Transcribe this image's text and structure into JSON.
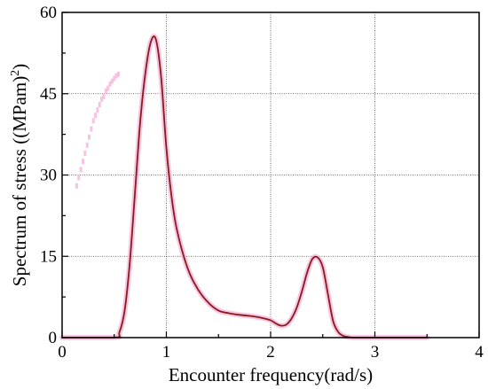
{
  "chart_data": {
    "type": "line",
    "xlabel": "Encounter frequency(rad/s)",
    "ylabel_main": "Spectrum of stress ((MPam)",
    "ylabel_sup": "2",
    "ylabel_close": ")",
    "xlim": [
      0,
      4
    ],
    "ylim": [
      0,
      60
    ],
    "x_ticks": [
      0,
      1,
      2,
      3,
      4
    ],
    "y_ticks": [
      0,
      15,
      30,
      45,
      60
    ],
    "x_tick_labels": [
      "0",
      "1",
      "2",
      "3",
      "4"
    ],
    "y_tick_labels": [
      "0",
      "15",
      "30",
      "45",
      "60"
    ],
    "grid": true,
    "line_color": "#8b1a1a",
    "glow_color": "#f4b8dc",
    "series": [
      {
        "x": [
          0.0,
          0.5,
          0.55,
          0.6,
          0.65,
          0.7,
          0.75,
          0.8,
          0.85,
          0.9,
          0.95,
          1.0,
          1.05,
          1.1,
          1.2,
          1.3,
          1.4,
          1.5,
          1.6,
          1.7,
          1.8,
          1.9,
          2.0,
          2.05,
          2.1,
          2.15,
          2.2,
          2.25,
          2.3,
          2.35,
          2.4,
          2.45,
          2.5,
          2.55,
          2.6,
          2.65,
          2.7,
          2.75,
          2.8,
          3.0,
          3.5
        ],
        "y": [
          0,
          0,
          1,
          5,
          14,
          27,
          40,
          49,
          54.5,
          55,
          48,
          35,
          26,
          20,
          13,
          9,
          6.5,
          5,
          4.5,
          4.2,
          4,
          3.7,
          3.2,
          2.6,
          2.2,
          2.4,
          3.5,
          5.5,
          8.5,
          12,
          14.5,
          14.8,
          13,
          8,
          3,
          1,
          0.3,
          0.1,
          0,
          0,
          0
        ]
      }
    ],
    "ghost_series": {
      "x": [
        0.14,
        0.16,
        0.18,
        0.2,
        0.22,
        0.24,
        0.26,
        0.28,
        0.3,
        0.32,
        0.34,
        0.36,
        0.38,
        0.4,
        0.42,
        0.44,
        0.46,
        0.48,
        0.5,
        0.52,
        0.54
      ],
      "y": [
        28,
        29.5,
        31,
        32.5,
        34,
        35.5,
        37,
        38.5,
        40,
        41,
        42,
        43,
        44,
        44.5,
        45.5,
        46,
        46.8,
        47.3,
        47.8,
        48.3,
        48.6
      ]
    }
  }
}
